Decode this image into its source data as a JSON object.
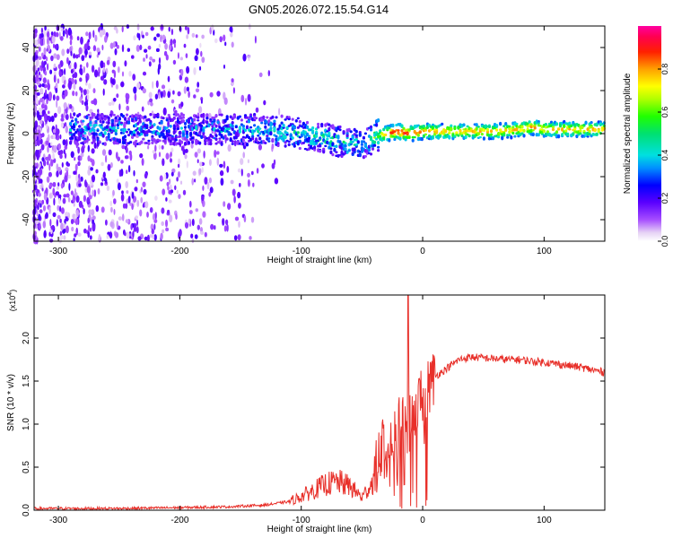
{
  "title": "GN05.2026.072.15.54.G14",
  "colors": {
    "snr_line": "#e8302a",
    "axis": "#000000",
    "background": "#ffffff"
  },
  "chart_data": [
    {
      "type": "heatmap",
      "name": "spectrogram",
      "xlabel": "Height of straight line (km)",
      "ylabel": "Frequency (Hz)",
      "xlim": [
        -320,
        150
      ],
      "ylim": [
        -50,
        50
      ],
      "x_ticks": [
        -300,
        -200,
        -100,
        0,
        100
      ],
      "x_tick_labels": [
        "-300",
        "-200",
        "-100",
        "0",
        "100"
      ],
      "y_ticks": [
        -40,
        -20,
        0,
        20,
        40
      ],
      "y_tick_labels": [
        "-40",
        "-20",
        "0",
        "20",
        "40"
      ],
      "colormap": "rainbow",
      "colorbar": {
        "label": "Normalized spectral amplitude",
        "range": [
          0.0,
          1.0
        ],
        "ticks": [
          0.0,
          0.2,
          0.4,
          0.6,
          0.8
        ],
        "tick_labels": [
          "0.0",
          "0.2",
          "0.4",
          "0.6",
          "0.8"
        ]
      },
      "ridge": {
        "x": [
          -290,
          -250,
          -200,
          -150,
          -110,
          -80,
          -60,
          -45,
          -38,
          -30,
          -20,
          -10,
          0,
          20,
          40,
          60,
          80,
          90,
          100,
          120,
          150
        ],
        "freq": [
          2,
          2,
          2,
          2,
          1,
          -2,
          -5,
          -4,
          -1,
          0,
          1,
          0,
          1,
          1,
          1,
          1,
          2,
          3,
          2,
          2,
          2
        ],
        "amplitude": [
          0.35,
          0.35,
          0.3,
          0.35,
          0.4,
          0.45,
          0.4,
          0.35,
          0.6,
          0.85,
          0.95,
          0.9,
          0.85,
          0.8,
          0.8,
          0.82,
          0.8,
          0.85,
          0.8,
          0.8,
          0.8
        ]
      }
    },
    {
      "type": "line",
      "name": "snr",
      "xlabel": "Height of straight line (km)",
      "ylabel": "SNR (10 * v/v)",
      "y_scale_label": "(x10",
      "y_scale_exponent": "4",
      "y_scale_suffix": ")",
      "xlim": [
        -320,
        150
      ],
      "ylim": [
        0.0,
        2.5
      ],
      "x_ticks": [
        -300,
        -200,
        -100,
        0,
        100
      ],
      "x_tick_labels": [
        "-300",
        "-200",
        "-100",
        "0",
        "100"
      ],
      "y_ticks": [
        0.0,
        0.5,
        1.0,
        1.5,
        2.0
      ],
      "y_tick_labels": [
        "0.0",
        "0.5",
        "1.0",
        "1.5",
        "2.0"
      ],
      "series": [
        {
          "name": "SNR",
          "x": [
            -320,
            -250,
            -200,
            -160,
            -130,
            -110,
            -100,
            -90,
            -80,
            -70,
            -60,
            -50,
            -40,
            -35,
            -30,
            -25,
            -20,
            -15,
            -10,
            -5,
            0,
            5,
            10,
            20,
            30,
            40,
            50,
            60,
            70,
            80,
            90,
            100,
            110,
            120,
            130,
            140,
            150
          ],
          "y": [
            0.02,
            0.02,
            0.03,
            0.04,
            0.06,
            0.1,
            0.16,
            0.23,
            0.3,
            0.33,
            0.28,
            0.15,
            0.35,
            0.7,
            0.85,
            0.9,
            0.95,
            1.1,
            1.15,
            1.2,
            1.3,
            1.45,
            1.55,
            1.65,
            1.75,
            1.78,
            1.77,
            1.76,
            1.75,
            1.75,
            1.73,
            1.72,
            1.7,
            1.68,
            1.66,
            1.63,
            1.6
          ]
        }
      ],
      "spike": {
        "x": -12,
        "y": 2.5
      }
    }
  ]
}
